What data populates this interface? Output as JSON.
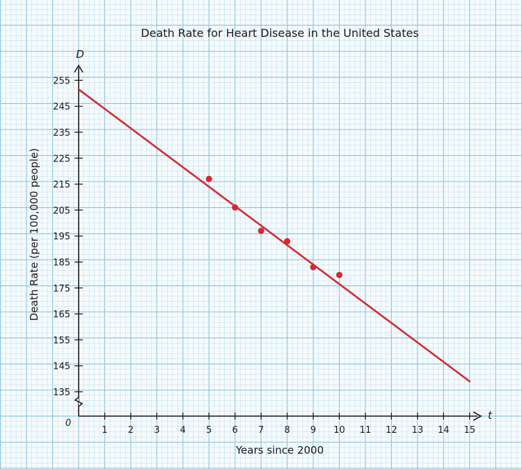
{
  "chart_data": {
    "type": "scatter",
    "title": "Death Rate for Heart Disease in the United States",
    "xlabel": "Years since 2000",
    "ylabel": "Death Rate (per 100,000 people)",
    "x_axis_name": "t",
    "y_axis_name": "D",
    "origin_label": "0",
    "xlim": [
      0,
      15.5
    ],
    "ylim": [
      125,
      258
    ],
    "axis_break_y": true,
    "x_ticks": [
      1,
      2,
      3,
      4,
      5,
      6,
      7,
      8,
      9,
      10,
      11,
      12,
      13,
      14,
      15
    ],
    "y_ticks": [
      135,
      145,
      155,
      165,
      175,
      185,
      195,
      205,
      215,
      225,
      235,
      245,
      255
    ],
    "points": [
      {
        "x": 5,
        "y": 217
      },
      {
        "x": 6,
        "y": 206
      },
      {
        "x": 7,
        "y": 197
      },
      {
        "x": 8,
        "y": 193
      },
      {
        "x": 9,
        "y": 183
      },
      {
        "x": 10,
        "y": 180
      }
    ],
    "trend_line": {
      "x_start": 0,
      "y_start": 251.5,
      "x_end": 15,
      "y_end": 139
    },
    "grid": true,
    "colors": {
      "grid_minor": "#bfe0f0",
      "grid_major": "#8fc6e2",
      "data": "#d42a2f",
      "axis": "#1a1a1a"
    }
  }
}
